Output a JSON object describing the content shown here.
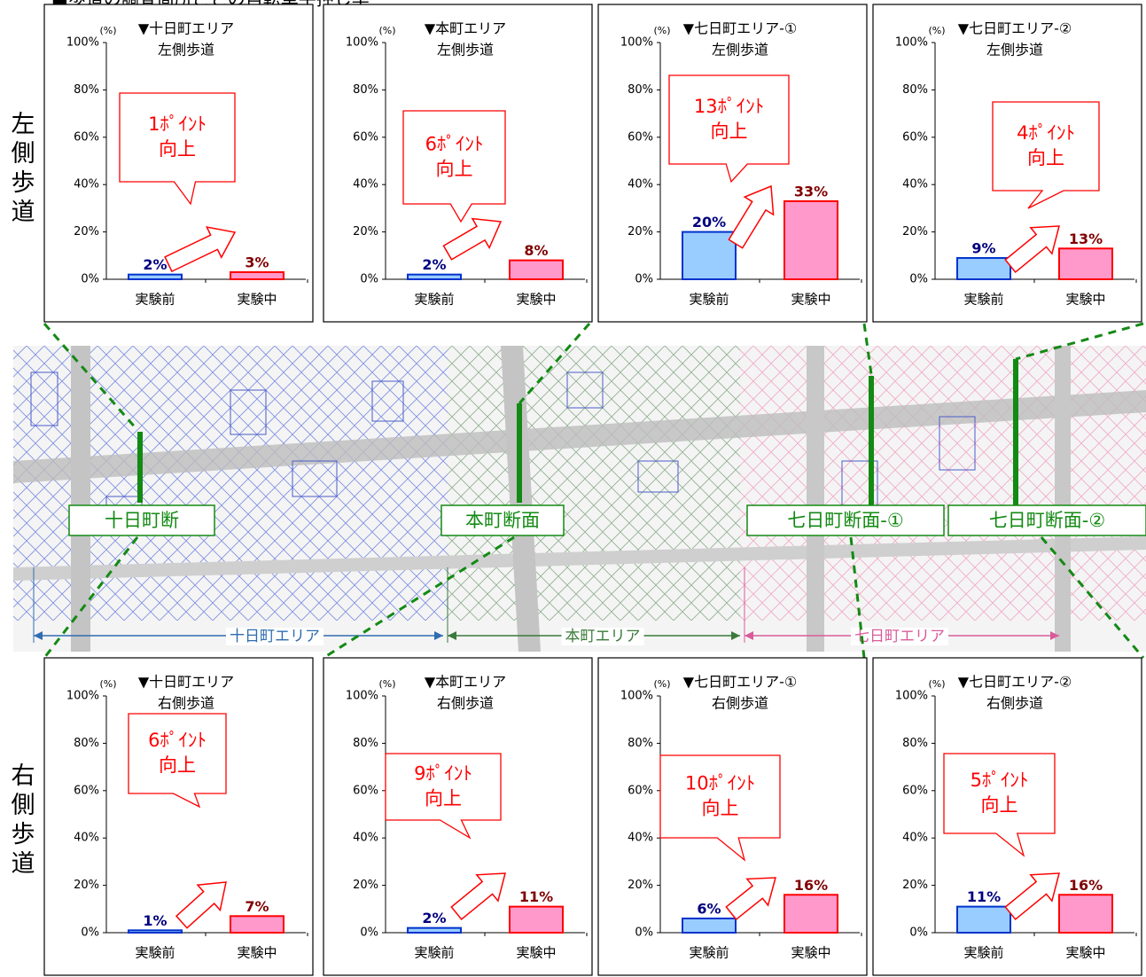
{
  "title": "■歩道の調査箇所ごとの自転車手押し率",
  "side_labels": [
    "左側歩道",
    "右側歩道"
  ],
  "map": {
    "sections": [
      "十日町断",
      "本町断面",
      "七日町断面-①",
      "七日町断面-②"
    ],
    "areas": [
      "十日町エリア",
      "本町エリア",
      "七日町エリア"
    ]
  },
  "chart_data": [
    {
      "type": "bar",
      "unit": "(%)",
      "title": "▼十日町エリア",
      "subtitle": "左側歩道",
      "categories": [
        "実験前",
        "実験中"
      ],
      "values": [
        2,
        3
      ],
      "value_labels": [
        "2%",
        "3%"
      ],
      "colors": [
        "#99ccff",
        "#ff99cc"
      ],
      "edgecolors": [
        "#0033cc",
        "#ff0000"
      ],
      "label_colors": [
        "#000080",
        "#800000"
      ],
      "ylim": [
        0,
        100
      ],
      "yticks": [
        {
          "value": 0,
          "label": "0%"
        },
        {
          "value": 20,
          "label": "20%"
        },
        {
          "value": 40,
          "label": "40%"
        },
        {
          "value": 60,
          "label": "60%"
        },
        {
          "value": 80,
          "label": "80%"
        },
        {
          "value": 100,
          "label": "100%"
        }
      ],
      "annotation": [
        "1ﾎﾟｲﾝﾄ",
        "向上"
      ]
    },
    {
      "type": "bar",
      "unit": "(%)",
      "title": "▼本町エリア",
      "subtitle": "左側歩道",
      "categories": [
        "実験前",
        "実験中"
      ],
      "values": [
        2,
        8
      ],
      "value_labels": [
        "2%",
        "8%"
      ],
      "colors": [
        "#99ccff",
        "#ff99cc"
      ],
      "edgecolors": [
        "#0033cc",
        "#ff0000"
      ],
      "label_colors": [
        "#000080",
        "#800000"
      ],
      "ylim": [
        0,
        100
      ],
      "yticks": [
        {
          "value": 0,
          "label": "0%"
        },
        {
          "value": 20,
          "label": "20%"
        },
        {
          "value": 40,
          "label": "40%"
        },
        {
          "value": 60,
          "label": "60%"
        },
        {
          "value": 80,
          "label": "80%"
        },
        {
          "value": 100,
          "label": "100%"
        }
      ],
      "annotation": [
        "6ﾎﾟｲﾝﾄ",
        "向上"
      ]
    },
    {
      "type": "bar",
      "unit": "(%)",
      "title": "▼七日町エリア-①",
      "subtitle": "左側歩道",
      "categories": [
        "実験前",
        "実験中"
      ],
      "values": [
        20,
        33
      ],
      "value_labels": [
        "20%",
        "33%"
      ],
      "colors": [
        "#99ccff",
        "#ff99cc"
      ],
      "edgecolors": [
        "#0033cc",
        "#ff0000"
      ],
      "label_colors": [
        "#000080",
        "#800000"
      ],
      "ylim": [
        0,
        100
      ],
      "yticks": [
        {
          "value": 0,
          "label": "0%"
        },
        {
          "value": 20,
          "label": "20%"
        },
        {
          "value": 40,
          "label": "40%"
        },
        {
          "value": 60,
          "label": "60%"
        },
        {
          "value": 80,
          "label": "80%"
        },
        {
          "value": 100,
          "label": "100%"
        }
      ],
      "annotation": [
        "13ﾎﾟｲﾝﾄ",
        "向上"
      ]
    },
    {
      "type": "bar",
      "unit": "(%)",
      "title": "▼七日町エリア-②",
      "subtitle": "左側歩道",
      "categories": [
        "実験前",
        "実験中"
      ],
      "values": [
        9,
        13
      ],
      "value_labels": [
        "9%",
        "13%"
      ],
      "colors": [
        "#99ccff",
        "#ff99cc"
      ],
      "edgecolors": [
        "#0033cc",
        "#ff0000"
      ],
      "label_colors": [
        "#000080",
        "#800000"
      ],
      "ylim": [
        0,
        100
      ],
      "yticks": [
        {
          "value": 0,
          "label": "0%"
        },
        {
          "value": 20,
          "label": "20%"
        },
        {
          "value": 40,
          "label": "40%"
        },
        {
          "value": 60,
          "label": "60%"
        },
        {
          "value": 80,
          "label": "80%"
        },
        {
          "value": 100,
          "label": "100%"
        }
      ],
      "annotation": [
        "4ﾎﾟｲﾝﾄ",
        "向上"
      ]
    },
    {
      "type": "bar",
      "unit": "(%)",
      "title": "▼十日町エリア",
      "subtitle": "右側歩道",
      "categories": [
        "実験前",
        "実験中"
      ],
      "values": [
        1,
        7
      ],
      "value_labels": [
        "1%",
        "7%"
      ],
      "colors": [
        "#99ccff",
        "#ff99cc"
      ],
      "edgecolors": [
        "#0033cc",
        "#ff0000"
      ],
      "label_colors": [
        "#000080",
        "#800000"
      ],
      "ylim": [
        0,
        100
      ],
      "yticks": [
        {
          "value": 0,
          "label": "0%"
        },
        {
          "value": 20,
          "label": "20%"
        },
        {
          "value": 40,
          "label": "40%"
        },
        {
          "value": 60,
          "label": "60%"
        },
        {
          "value": 80,
          "label": "80%"
        },
        {
          "value": 100,
          "label": "100%"
        }
      ],
      "annotation": [
        "6ﾎﾟｲﾝﾄ",
        "向上"
      ]
    },
    {
      "type": "bar",
      "unit": "(%)",
      "title": "▼本町エリア",
      "subtitle": "右側歩道",
      "categories": [
        "実験前",
        "実験中"
      ],
      "values": [
        2,
        11
      ],
      "value_labels": [
        "2%",
        "11%"
      ],
      "colors": [
        "#99ccff",
        "#ff99cc"
      ],
      "edgecolors": [
        "#0033cc",
        "#ff0000"
      ],
      "label_colors": [
        "#000080",
        "#800000"
      ],
      "ylim": [
        0,
        100
      ],
      "yticks": [
        {
          "value": 0,
          "label": "0%"
        },
        {
          "value": 20,
          "label": "20%"
        },
        {
          "value": 40,
          "label": "40%"
        },
        {
          "value": 60,
          "label": "60%"
        },
        {
          "value": 80,
          "label": "80%"
        },
        {
          "value": 100,
          "label": "100%"
        }
      ],
      "annotation": [
        "9ﾎﾟｲﾝﾄ",
        "向上"
      ]
    },
    {
      "type": "bar",
      "unit": "(%)",
      "title": "▼七日町エリア-①",
      "subtitle": "右側歩道",
      "categories": [
        "実験前",
        "実験中"
      ],
      "values": [
        6,
        16
      ],
      "value_labels": [
        "6%",
        "16%"
      ],
      "colors": [
        "#99ccff",
        "#ff99cc"
      ],
      "edgecolors": [
        "#0033cc",
        "#ff0000"
      ],
      "label_colors": [
        "#000080",
        "#800000"
      ],
      "ylim": [
        0,
        100
      ],
      "yticks": [
        {
          "value": 0,
          "label": "0%"
        },
        {
          "value": 20,
          "label": "20%"
        },
        {
          "value": 40,
          "label": "40%"
        },
        {
          "value": 60,
          "label": "60%"
        },
        {
          "value": 80,
          "label": "80%"
        },
        {
          "value": 100,
          "label": "100%"
        }
      ],
      "annotation": [
        "10ﾎﾟｲﾝﾄ",
        "向上"
      ]
    },
    {
      "type": "bar",
      "unit": "(%)",
      "title": "▼七日町エリア-②",
      "subtitle": "右側歩道",
      "categories": [
        "実験前",
        "実験中"
      ],
      "values": [
        11,
        16
      ],
      "value_labels": [
        "11%",
        "16%"
      ],
      "colors": [
        "#99ccff",
        "#ff99cc"
      ],
      "edgecolors": [
        "#0033cc",
        "#ff0000"
      ],
      "label_colors": [
        "#000080",
        "#800000"
      ],
      "ylim": [
        0,
        100
      ],
      "yticks": [
        {
          "value": 0,
          "label": "0%"
        },
        {
          "value": 20,
          "label": "20%"
        },
        {
          "value": 40,
          "label": "40%"
        },
        {
          "value": 60,
          "label": "60%"
        },
        {
          "value": 80,
          "label": "80%"
        },
        {
          "value": 100,
          "label": "100%"
        }
      ],
      "annotation": [
        "5ﾎﾟｲﾝﾄ",
        "向上"
      ]
    }
  ]
}
